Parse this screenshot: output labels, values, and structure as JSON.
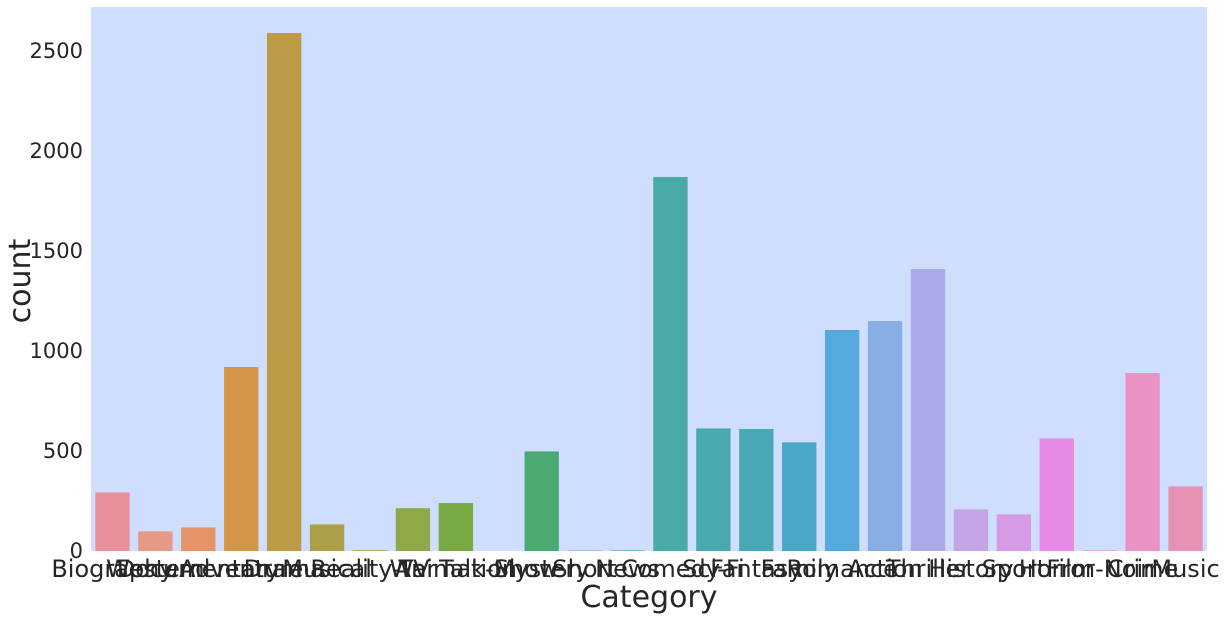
{
  "chart_data": {
    "type": "bar",
    "xlabel": "Category",
    "ylabel": "count",
    "ylim": [
      0,
      2720
    ],
    "yticks": [
      0,
      500,
      1000,
      1500,
      2000,
      2500
    ],
    "ytick_labels": [
      "0",
      "500",
      "1000",
      "1500",
      "2000",
      "2500"
    ],
    "grid": false,
    "background_color": "#cfddff",
    "categories": [
      "Biography",
      "Western",
      "Documentary",
      "Adventure",
      "Drama",
      "Musical",
      "Reality-TV",
      "War",
      "Animation",
      "Talk-Show",
      "Mystery",
      "Short",
      "News",
      "Comedy",
      "Sci-Fi",
      "Fantasy",
      "Family",
      "Romance",
      "Action",
      "Thriller",
      "History",
      "Sport",
      "Horror",
      "Film-Noir",
      "Crime",
      "Music"
    ],
    "values": [
      293,
      98,
      118,
      920,
      2590,
      133,
      4,
      214,
      240,
      0,
      498,
      2,
      3,
      1870,
      613,
      610,
      543,
      1105,
      1150,
      1410,
      208,
      183,
      563,
      3,
      890,
      323
    ],
    "colors": [
      "#e8919c",
      "#e69a85",
      "#e49467",
      "#d4954b",
      "#bc9a46",
      "#ac9f49",
      "#a3a245",
      "#8ea948",
      "#78a942",
      "#52ac6a",
      "#4aaa72",
      "#4aaa8a",
      "#4aa99a",
      "#4aaaa6",
      "#4aa9ae",
      "#4aa8b6",
      "#4ba6c8",
      "#54a9dd",
      "#88aee6",
      "#aca9e8",
      "#c4a4e4",
      "#d79be6",
      "#e68ae6",
      "#ea8ad4",
      "#ea92c3",
      "#e792b4"
    ]
  }
}
